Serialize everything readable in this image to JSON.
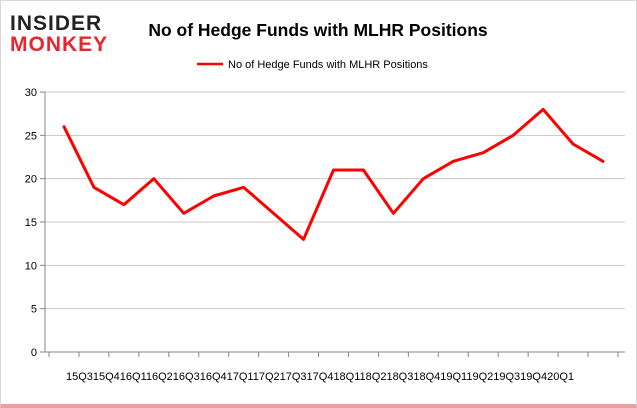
{
  "logo": {
    "line1": "INSIDER",
    "line2": "MONKEY",
    "color_dark": "#222222",
    "color_red": "#e8262d"
  },
  "colors": {
    "series": "#ff0000",
    "grid": "#c8c8c8",
    "axis": "#868686"
  },
  "chart_data": {
    "type": "line",
    "title": "No of Hedge Funds with MLHR Positions",
    "categories": [
      "15Q3",
      "15Q4",
      "16Q1",
      "16Q2",
      "16Q3",
      "16Q4",
      "17Q1",
      "17Q2",
      "17Q3",
      "17Q4",
      "18Q1",
      "18Q2",
      "18Q3",
      "18Q4",
      "19Q1",
      "19Q2",
      "19Q3",
      "19Q4",
      "20Q1"
    ],
    "tick_text": "15Q315Q416Q116Q216Q316Q417Q117Q217Q317Q418Q118Q218Q318Q419Q119Q219Q319Q420Q1",
    "series": [
      {
        "name": "No of Hedge Funds with MLHR Positions",
        "values": [
          26,
          19,
          17,
          20,
          16,
          18,
          19,
          16,
          13,
          21,
          21,
          16,
          20,
          22,
          23,
          25,
          28,
          24,
          22
        ]
      }
    ],
    "xlabel": "",
    "ylabel": "",
    "ylim": [
      0,
      30
    ],
    "yticks": [
      0,
      5,
      10,
      15,
      20,
      25,
      30
    ],
    "grid": true,
    "legend": "top-center"
  }
}
